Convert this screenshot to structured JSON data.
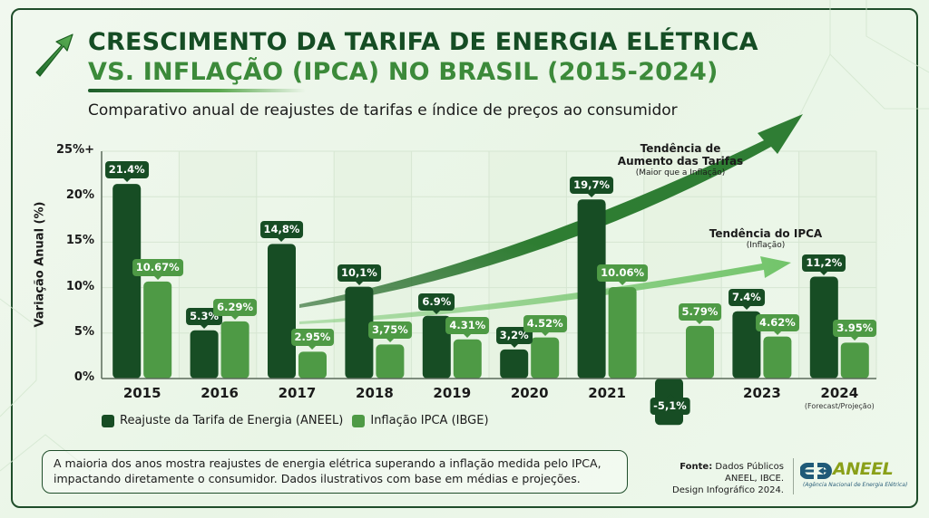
{
  "header": {
    "title_line1": "CRESCIMENTO DA TARIFA DE ENERGIA ELÉTRICA",
    "title_line2": "VS. INFLAÇÃO (IPCA) NO BRASIL (2015-2024)",
    "subtitle": "Comparativo anual de reajustes de tarifas e índice de preços ao consumidor",
    "icon": "trend-up-arrow-icon"
  },
  "chart_data": {
    "type": "bar",
    "title": "Crescimento da Tarifa de Energia Elétrica vs. Inflação (IPCA) no Brasil (2015-2024)",
    "xlabel": "",
    "ylabel": "Variação Anual (%)",
    "ylim": [
      0,
      25
    ],
    "yticks": [
      "0%",
      "5%",
      "10%",
      "15%",
      "20%",
      "25%+"
    ],
    "ytick_values": [
      0,
      5,
      10,
      15,
      20,
      25
    ],
    "grid": true,
    "categories": [
      "2015",
      "2016",
      "2017",
      "2018",
      "2019",
      "2020",
      "2021",
      "",
      "2023",
      "2024"
    ],
    "category_notes": [
      "",
      "",
      "",
      "",
      "",
      "",
      "",
      "",
      "",
      "(Forecast/Projeção)"
    ],
    "series": [
      {
        "name": "Reajuste da Tarifa de Energia (ANEEL)",
        "color": "#174d24",
        "values": [
          21.4,
          5.3,
          14.8,
          10.1,
          6.9,
          3.2,
          19.7,
          -5.1,
          7.4,
          11.2
        ],
        "labels": [
          "21.4%",
          "5.3%",
          "14,8%",
          "10,1%",
          "6.9%",
          "3,2%",
          "19,7%",
          "-5,1%",
          "7.4%",
          "11,2%"
        ]
      },
      {
        "name": "Inflação IPCA (IBGE)",
        "color": "#4e9a45",
        "values": [
          10.67,
          6.29,
          2.95,
          3.75,
          4.31,
          4.52,
          10.06,
          5.79,
          4.62,
          3.95
        ],
        "labels": [
          "10.67%",
          "6.29%",
          "2.95%",
          "3,75%",
          "4.31%",
          "4.52%",
          "10.06%",
          "5.79%",
          "4.62%",
          "3.95%"
        ]
      }
    ],
    "legend_position": "bottom-left",
    "annotations": [
      {
        "title_line1": "Tendência de",
        "title_line2": "Aumento das Tarifas",
        "subtitle": "(Maior que a Inflação)",
        "color": "#2e7d32"
      },
      {
        "title_line1": "Tendência do IPCA",
        "title_line2": "",
        "subtitle": "(Inflação)",
        "color": "#6cc264"
      }
    ]
  },
  "legend": {
    "items": [
      {
        "label": "Reajuste da Tarifa de Energia (ANEEL)",
        "color": "#174d24"
      },
      {
        "label": "Inflação IPCA (IBGE)",
        "color": "#4e9a45"
      }
    ]
  },
  "footer": {
    "note_line1": "A maioria dos anos mostra reajustes de energia elétrica superando a inflação medida pelo IPCA,",
    "note_line2": "impactando diretamente o consumidor. Dados ilustrativos com base em médias e projeções.",
    "source_label": "Fonte:",
    "source_line1": "Dados Públicos",
    "source_line2": "ANEEL, IBCE.",
    "source_line3": "Design Infográfico 2024.",
    "logo_name": "ANEEL",
    "logo_full": "(Agência Nacional de Energia Elétrica)"
  }
}
